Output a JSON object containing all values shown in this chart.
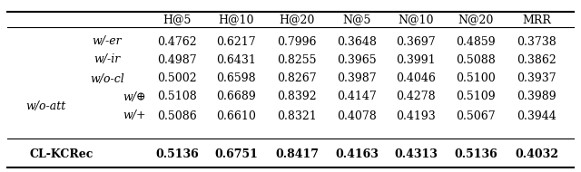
{
  "columns": [
    "H@5",
    "H@10",
    "H@20",
    "N@5",
    "N@10",
    "N@20",
    "MRR"
  ],
  "rows": [
    {
      "label": "w/-er",
      "group": null,
      "sublabel": null,
      "values": [
        "0.4762",
        "0.6217",
        "0.7996",
        "0.3648",
        "0.3697",
        "0.4859",
        "0.3738"
      ],
      "bold": false,
      "italic": true
    },
    {
      "label": "w/-ir",
      "group": null,
      "sublabel": null,
      "values": [
        "0.4987",
        "0.6431",
        "0.8255",
        "0.3965",
        "0.3991",
        "0.5088",
        "0.3862"
      ],
      "bold": false,
      "italic": true
    },
    {
      "label": "w/o-cl",
      "group": null,
      "sublabel": null,
      "values": [
        "0.5002",
        "0.6598",
        "0.8267",
        "0.3987",
        "0.4046",
        "0.5100",
        "0.3937"
      ],
      "bold": false,
      "italic": true
    },
    {
      "label": "w/⊕",
      "group": "w/o-att",
      "sublabel": null,
      "values": [
        "0.5108",
        "0.6689",
        "0.8392",
        "0.4147",
        "0.4278",
        "0.5109",
        "0.3989"
      ],
      "bold": false,
      "italic": true
    },
    {
      "label": "w/+",
      "group": "w/o-att",
      "sublabel": null,
      "values": [
        "0.5086",
        "0.6610",
        "0.8321",
        "0.4078",
        "0.4193",
        "0.5067",
        "0.3944"
      ],
      "bold": false,
      "italic": true
    },
    {
      "label": "CL-KCRec",
      "group": null,
      "sublabel": null,
      "values": [
        "0.5136",
        "0.6751",
        "0.8417",
        "0.4163",
        "0.4313",
        "0.5136",
        "0.4032"
      ],
      "bold": true,
      "italic": false
    }
  ],
  "group_label": "w/o-att",
  "group_rows": [
    3,
    4
  ],
  "background_color": "#ffffff",
  "figwidth": 6.4,
  "figheight": 1.9,
  "dpi": 100
}
